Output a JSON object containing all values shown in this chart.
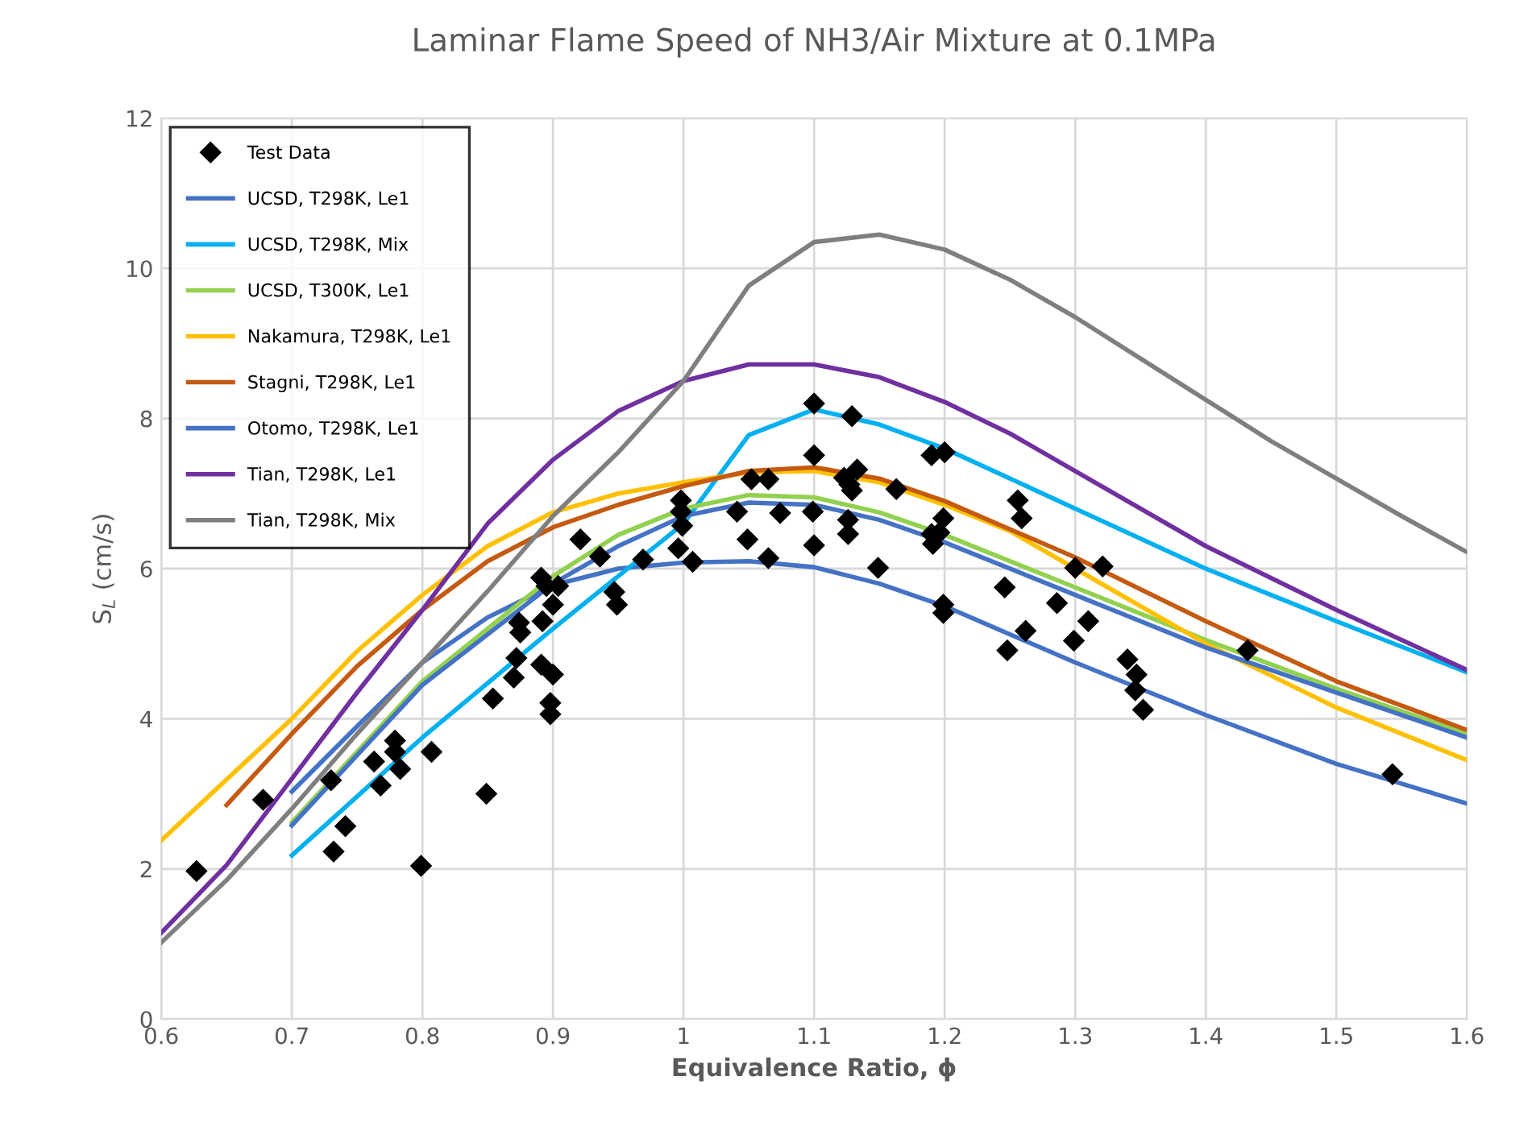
{
  "chart_data": {
    "type": "line",
    "title": "Laminar Flame Speed of NH3/Air Mixture at 0.1MPa",
    "xlabel": "Equivalence Ratio, ϕ",
    "ylabel": "S$_{L}$ (cm/s)",
    "xlim": [
      0.6,
      1.6
    ],
    "xticks": [
      0.6,
      0.7,
      0.8,
      0.9,
      1,
      1.1,
      1.2,
      1.3,
      1.4,
      1.5,
      1.6
    ],
    "ylim": [
      0,
      12
    ],
    "yticks": [
      0,
      2,
      4,
      6,
      8,
      10,
      12
    ],
    "grid": true,
    "legend": "top left",
    "marker": "none",
    "line_style": "solid",
    "series": [
      {
        "name": "Test Data",
        "type": "scatter",
        "marker": "diamond",
        "color": "#000000",
        "x": [
          0.627,
          0.678,
          0.73,
          0.732,
          0.741,
          0.763,
          0.768,
          0.779,
          0.779,
          0.783,
          0.799,
          0.807,
          0.849,
          0.854,
          0.87,
          0.872,
          0.875,
          0.874,
          0.891,
          0.892,
          0.891,
          0.895,
          0.898,
          0.898,
          0.9,
          0.9,
          0.904,
          0.921,
          0.936,
          0.947,
          0.949,
          0.969,
          0.996,
          0.998,
          0.998,
          0.999,
          1.007,
          1.041,
          1.049,
          1.052,
          1.065,
          1.065,
          1.074,
          1.1,
          1.1,
          1.099,
          1.1,
          1.129,
          1.123,
          1.127,
          1.129,
          1.133,
          1.126,
          1.126,
          1.149,
          1.163,
          1.19,
          1.191,
          1.19,
          1.196,
          1.2,
          1.199,
          1.199,
          1.199,
          1.246,
          1.248,
          1.256,
          1.259,
          1.262,
          1.286,
          1.3,
          1.299,
          1.31,
          1.321,
          1.34,
          1.346,
          1.347,
          1.352,
          1.432,
          1.543
        ],
        "values": [
          1.97,
          2.92,
          3.18,
          2.23,
          2.57,
          3.43,
          3.11,
          3.71,
          3.56,
          3.33,
          2.04,
          3.56,
          3.0,
          4.27,
          4.55,
          4.81,
          5.15,
          5.28,
          5.88,
          5.3,
          4.72,
          5.77,
          4.21,
          4.06,
          4.59,
          5.52,
          5.77,
          6.39,
          6.16,
          5.69,
          5.52,
          6.12,
          6.27,
          6.91,
          6.76,
          6.57,
          6.09,
          6.76,
          6.39,
          7.19,
          7.19,
          6.14,
          6.74,
          8.2,
          7.51,
          6.76,
          6.31,
          8.03,
          7.21,
          7.12,
          7.04,
          7.32,
          6.65,
          6.46,
          6.01,
          7.06,
          7.51,
          6.33,
          6.46,
          6.48,
          7.55,
          6.67,
          5.52,
          5.41,
          5.75,
          4.91,
          6.91,
          6.67,
          5.17,
          5.54,
          6.01,
          5.04,
          5.3,
          6.03,
          4.79,
          4.38,
          4.59,
          4.12,
          4.91,
          3.26
        ]
      },
      {
        "name": "UCSD, T298K, Le1",
        "color": "#4472c4",
        "x": [
          0.7,
          0.75,
          0.8,
          0.85,
          0.9,
          0.95,
          1.0,
          1.05,
          1.1,
          1.15,
          1.2,
          1.3,
          1.4,
          1.5,
          1.6
        ],
        "values": [
          3.03,
          3.9,
          4.75,
          5.35,
          5.78,
          6.0,
          6.08,
          6.1,
          6.02,
          5.8,
          5.5,
          4.75,
          4.05,
          3.4,
          2.87
        ]
      },
      {
        "name": "UCSD, T298K, Mix",
        "color": "#00b0f0",
        "x": [
          0.7,
          0.8,
          0.9,
          1.0,
          1.05,
          1.1,
          1.15,
          1.2,
          1.3,
          1.4,
          1.5,
          1.6
        ],
        "values": [
          2.18,
          3.75,
          5.2,
          6.6,
          7.78,
          8.12,
          7.92,
          7.6,
          6.8,
          6.0,
          5.3,
          4.62
        ]
      },
      {
        "name": "UCSD, T300K, Le1",
        "color": "#92d050",
        "x": [
          0.7,
          0.8,
          0.9,
          0.95,
          1.0,
          1.05,
          1.1,
          1.15,
          1.2,
          1.3,
          1.4,
          1.5,
          1.6
        ],
        "values": [
          2.62,
          4.5,
          5.9,
          6.45,
          6.8,
          6.98,
          6.95,
          6.75,
          6.45,
          5.75,
          5.05,
          4.4,
          3.8
        ]
      },
      {
        "name": "Nakamura, T298K, Le1",
        "color": "#ffc000",
        "x": [
          0.6,
          0.7,
          0.75,
          0.8,
          0.85,
          0.9,
          0.95,
          1.0,
          1.05,
          1.1,
          1.15,
          1.2,
          1.25,
          1.3,
          1.4,
          1.5,
          1.6
        ],
        "values": [
          2.38,
          4.0,
          4.9,
          5.65,
          6.3,
          6.75,
          7.0,
          7.15,
          7.28,
          7.3,
          7.15,
          6.85,
          6.5,
          6.0,
          5.0,
          4.15,
          3.45
        ]
      },
      {
        "name": "Stagni, T298K, Le1",
        "color": "#c55a11",
        "x": [
          0.65,
          0.7,
          0.75,
          0.8,
          0.85,
          0.9,
          0.95,
          1.0,
          1.05,
          1.1,
          1.15,
          1.2,
          1.3,
          1.4,
          1.5,
          1.6
        ],
        "values": [
          2.85,
          3.8,
          4.7,
          5.45,
          6.1,
          6.55,
          6.85,
          7.1,
          7.3,
          7.35,
          7.2,
          6.9,
          6.15,
          5.3,
          4.5,
          3.85
        ]
      },
      {
        "name": "Otomo, T298K, Le1",
        "color": "#4472c4",
        "x": [
          0.7,
          0.8,
          0.9,
          0.95,
          1.0,
          1.05,
          1.1,
          1.15,
          1.2,
          1.3,
          1.4,
          1.5,
          1.6
        ],
        "values": [
          2.58,
          4.45,
          5.8,
          6.3,
          6.7,
          6.88,
          6.85,
          6.65,
          6.35,
          5.65,
          4.95,
          4.35,
          3.75
        ]
      },
      {
        "name": "Tian, T298K, Le1",
        "color": "#7030a0",
        "x": [
          0.6,
          0.65,
          0.7,
          0.75,
          0.8,
          0.85,
          0.9,
          0.95,
          1.0,
          1.05,
          1.1,
          1.15,
          1.2,
          1.25,
          1.3,
          1.4,
          1.5,
          1.6
        ],
        "values": [
          1.15,
          2.05,
          3.2,
          4.35,
          5.45,
          6.6,
          7.45,
          8.1,
          8.5,
          8.72,
          8.72,
          8.55,
          8.22,
          7.8,
          7.3,
          6.3,
          5.45,
          4.65
        ]
      },
      {
        "name": "Tian, T298K, Mix",
        "color": "#7f7f7f",
        "x": [
          0.6,
          0.65,
          0.7,
          0.75,
          0.8,
          0.85,
          0.9,
          0.95,
          1.0,
          1.05,
          1.1,
          1.15,
          1.2,
          1.25,
          1.3,
          1.35,
          1.4,
          1.45,
          1.5,
          1.55,
          1.6
        ],
        "values": [
          1.02,
          1.85,
          2.8,
          3.8,
          4.75,
          5.7,
          6.7,
          7.55,
          8.5,
          9.77,
          10.35,
          10.45,
          10.25,
          9.85,
          9.35,
          8.8,
          8.25,
          7.7,
          7.2,
          6.7,
          6.22
        ]
      }
    ]
  }
}
